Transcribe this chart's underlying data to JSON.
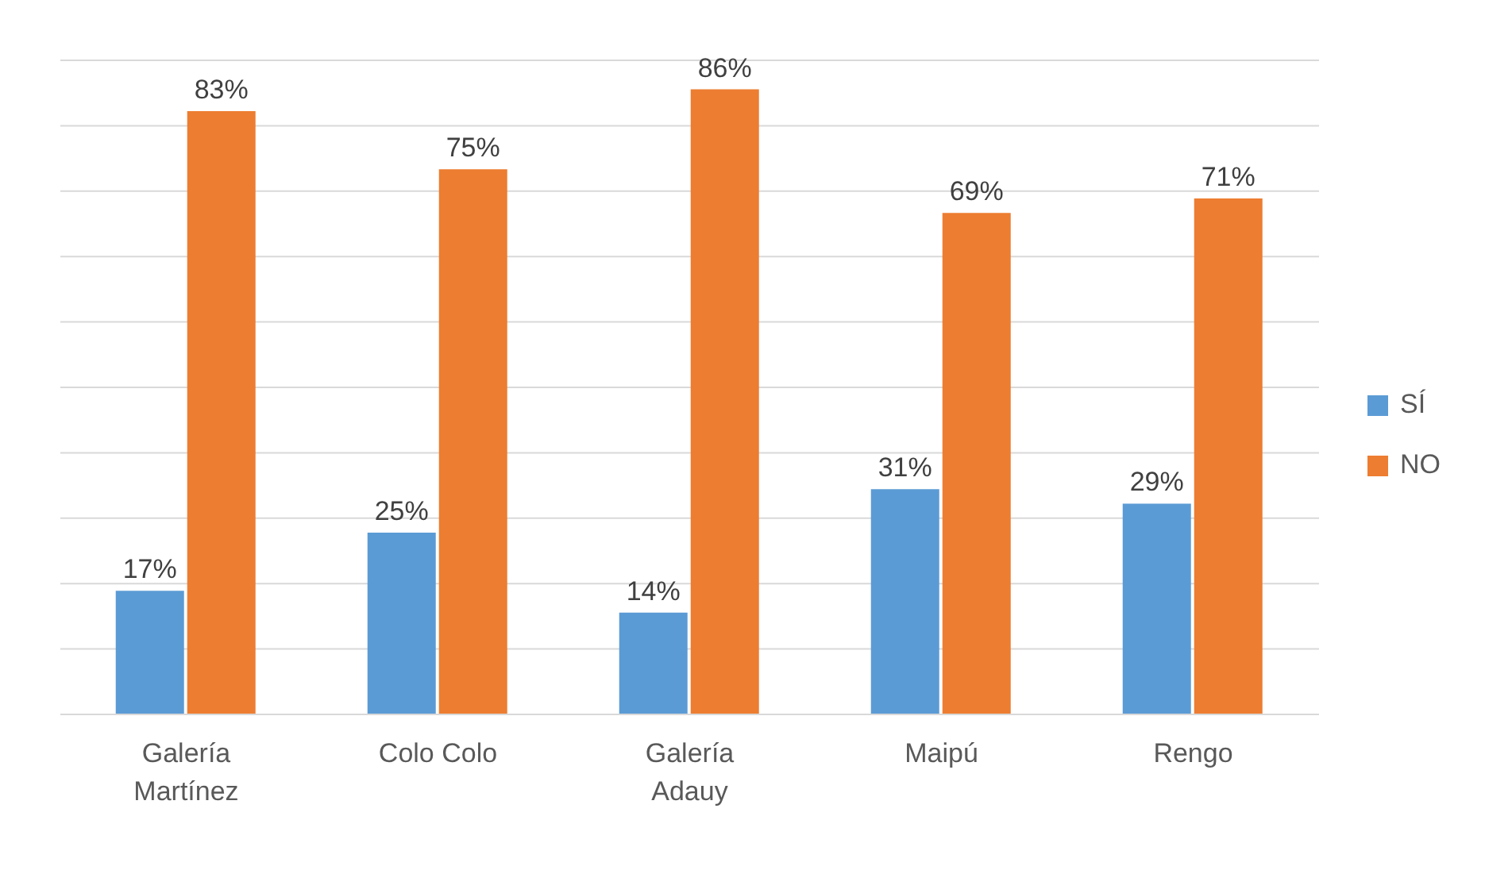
{
  "chart_data": {
    "type": "bar",
    "categories": [
      "Galería Martínez",
      "Colo Colo",
      "Galería Adauy",
      "Maipú",
      "Rengo"
    ],
    "series": [
      {
        "name": "SÍ",
        "color": "#5b9bd5",
        "values": [
          17,
          25,
          14,
          31,
          29
        ],
        "value_labels": [
          "17%",
          "25%",
          "14%",
          "31%",
          "29%"
        ]
      },
      {
        "name": "NO",
        "color": "#ed7d31",
        "values": [
          83,
          75,
          86,
          69,
          71
        ],
        "value_labels": [
          "83%",
          "75%",
          "86%",
          "69%",
          "71%"
        ]
      }
    ],
    "tick_labels": "x",
    "grid": "y",
    "legend": "right"
  }
}
